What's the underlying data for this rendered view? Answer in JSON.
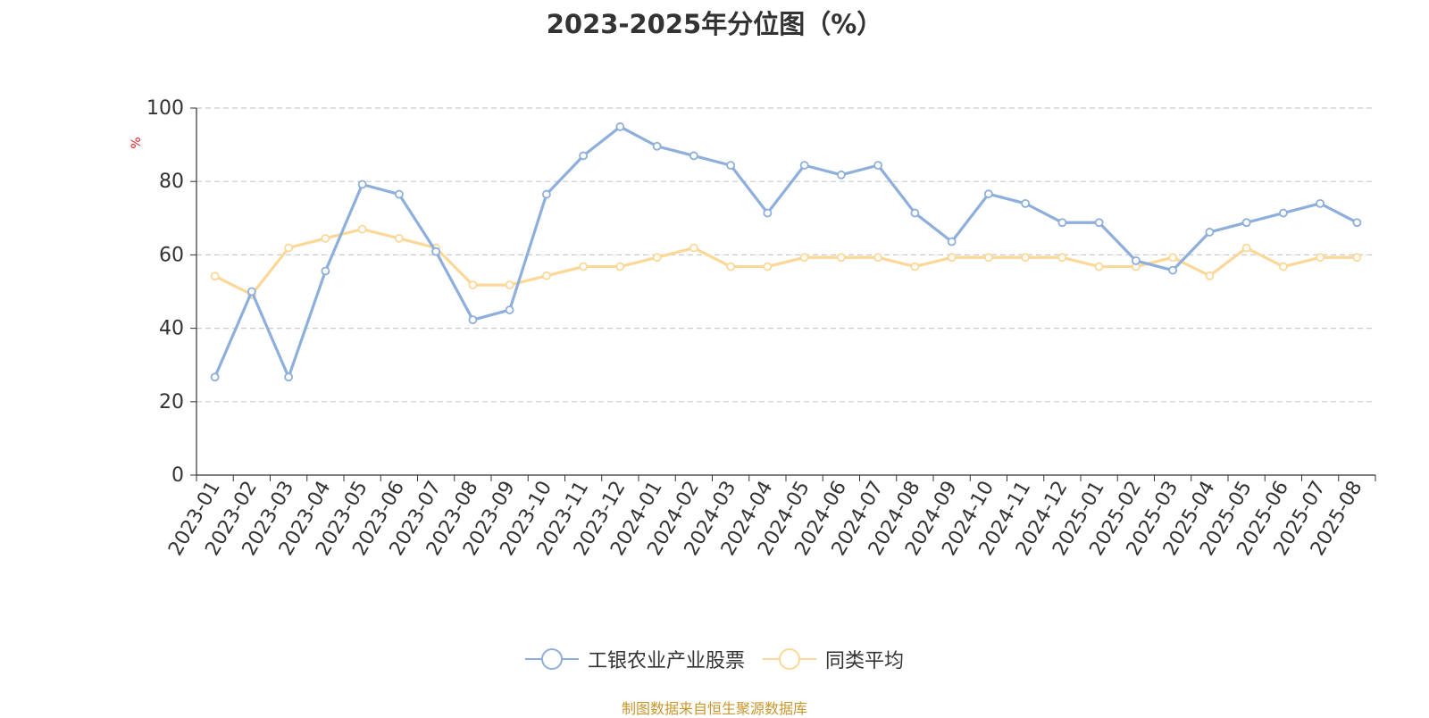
{
  "chart_data": {
    "type": "line",
    "title": "2023-2025年分位图（%）",
    "ylabel": "%",
    "xlabel": "",
    "ylim": [
      0,
      100
    ],
    "yticks": [
      0,
      20,
      40,
      60,
      80,
      100
    ],
    "grid": true,
    "legend_position": "bottom",
    "categories": [
      "2023-01",
      "2023-02",
      "2023-03",
      "2023-04",
      "2023-05",
      "2023-06",
      "2023-07",
      "2023-08",
      "2023-09",
      "2023-10",
      "2023-11",
      "2023-12",
      "2024-01",
      "2024-02",
      "2024-03",
      "2024-04",
      "2024-05",
      "2024-06",
      "2024-07",
      "2024-08",
      "2024-09",
      "2024-10",
      "2024-11",
      "2024-12",
      "2025-01",
      "2025-02",
      "2025-03",
      "2025-04",
      "2025-05",
      "2025-06",
      "2025-07",
      "2025-08"
    ],
    "series": [
      {
        "name": "工银农业产业股票",
        "color": "#8eaedb",
        "values": [
          26.7,
          50.0,
          26.7,
          55.6,
          79.2,
          76.5,
          60.9,
          42.3,
          45.0,
          76.5,
          87.0,
          94.9,
          89.6,
          87.0,
          84.4,
          71.4,
          84.4,
          81.8,
          84.4,
          71.4,
          63.6,
          76.6,
          74.0,
          68.8,
          68.8,
          58.4,
          55.8,
          66.2,
          68.8,
          71.4,
          74.0,
          68.8
        ]
      },
      {
        "name": "同类平均",
        "color": "#fcd898",
        "values": [
          54.2,
          49.2,
          61.9,
          64.5,
          67.0,
          64.5,
          61.9,
          51.8,
          51.8,
          54.3,
          56.8,
          56.8,
          59.3,
          61.9,
          56.8,
          56.8,
          59.3,
          59.3,
          59.3,
          56.8,
          59.3,
          59.3,
          59.3,
          59.3,
          56.8,
          56.8,
          59.3,
          54.3,
          61.9,
          56.8,
          59.3,
          59.3
        ]
      }
    ]
  },
  "source_note": "制图数据来自恒生聚源数据库"
}
